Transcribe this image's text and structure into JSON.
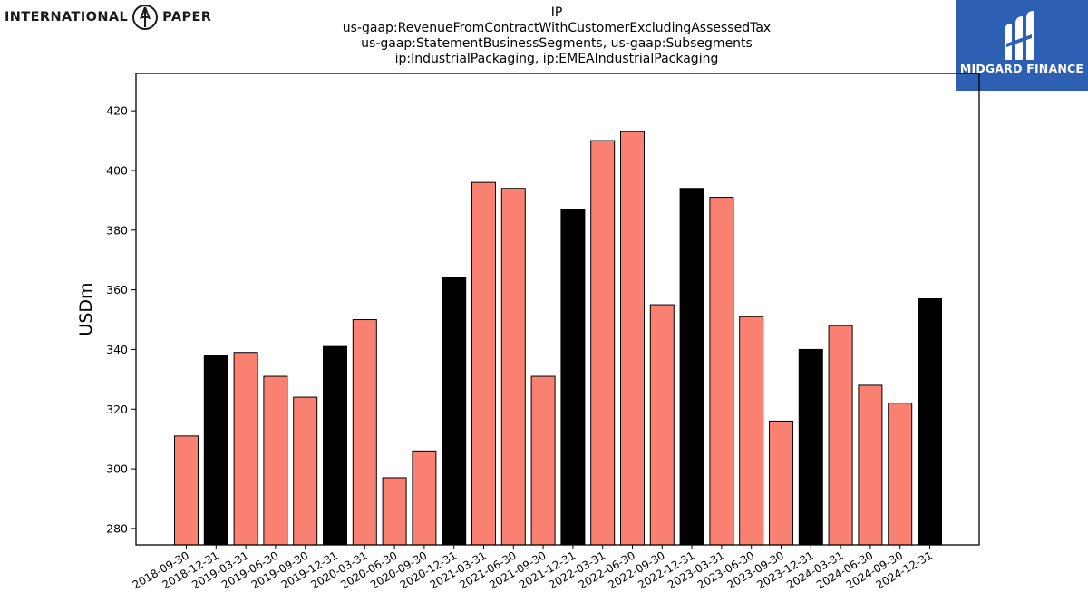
{
  "header": {
    "logo_left": {
      "text_left": "INTERNATIONAL",
      "text_right": "PAPER",
      "icon": "international-paper-mark-icon"
    },
    "logo_right": {
      "text": "MIDGARD FINANCE",
      "icon": "midgard-finance-mark-icon",
      "background": "#2d5fb3"
    }
  },
  "chart_data": {
    "type": "bar",
    "title_lines": [
      "IP",
      "us-gaap:RevenueFromContractWithCustomerExcludingAssessedTax",
      "us-gaap:StatementBusinessSegments, us-gaap:Subsegments",
      "ip:IndustrialPackaging, ip:EMEAIndustrialPackaging"
    ],
    "xlabel": "",
    "ylabel": "USDm",
    "ylim": [
      274.5,
      432.5
    ],
    "yticks": [
      280,
      300,
      320,
      340,
      360,
      380,
      400,
      420
    ],
    "grid": false,
    "colors": {
      "quarter": "#fa8072",
      "year_end": "#000000",
      "edge": "#000000"
    },
    "categories": [
      "2018-09-30",
      "2018-12-31",
      "2019-03-31",
      "2019-06-30",
      "2019-09-30",
      "2019-12-31",
      "2020-03-31",
      "2020-06-30",
      "2020-09-30",
      "2020-12-31",
      "2021-03-31",
      "2021-06-30",
      "2021-09-30",
      "2021-12-31",
      "2022-03-31",
      "2022-06-30",
      "2022-09-30",
      "2022-12-31",
      "2023-03-31",
      "2023-06-30",
      "2023-09-30",
      "2023-12-31",
      "2024-03-31",
      "2024-06-30",
      "2024-09-30",
      "2024-12-31"
    ],
    "values": [
      311,
      338,
      339,
      331,
      324,
      341,
      350,
      297,
      306,
      364,
      396,
      394,
      331,
      387,
      410,
      413,
      355,
      394,
      391,
      351,
      316,
      340,
      348,
      328,
      322,
      357
    ]
  }
}
